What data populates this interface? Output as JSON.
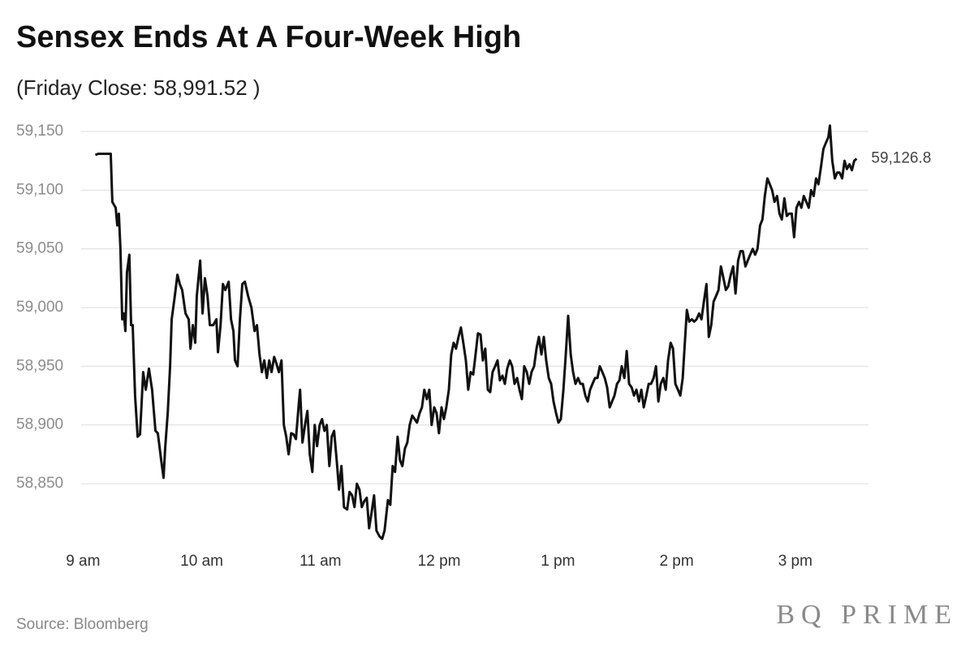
{
  "chart_data": {
    "type": "line",
    "title": "Sensex Ends At A Four-Week High",
    "subtitle": "(Friday Close: 58,991.52 )",
    "source": "Source: Bloomberg",
    "logo": "BQ PRIME",
    "end_label": "59,126.8",
    "xlim": [
      537,
      937
    ],
    "xticks": [
      {
        "value": 540,
        "label": "9 am"
      },
      {
        "value": 600,
        "label": "10 am"
      },
      {
        "value": 660,
        "label": "11 am"
      },
      {
        "value": 720,
        "label": "12 pm"
      },
      {
        "value": 780,
        "label": "1 pm"
      },
      {
        "value": 840,
        "label": "2 pm"
      },
      {
        "value": 900,
        "label": "3 pm"
      }
    ],
    "ylim": [
      58800,
      59160
    ],
    "yticks": [
      {
        "value": 58850,
        "label": "58,850"
      },
      {
        "value": 58900,
        "label": "58,900"
      },
      {
        "value": 58950,
        "label": "58,950"
      },
      {
        "value": 59000,
        "label": "59,000"
      },
      {
        "value": 59050,
        "label": "59,050"
      },
      {
        "value": 59100,
        "label": "59,100"
      },
      {
        "value": 59150,
        "label": "59,150"
      }
    ],
    "grid": true,
    "x": [
      546.2,
      547.8,
      554.0,
      554.8,
      556.5,
      557.3,
      558.1,
      558.9,
      559.8,
      560.6,
      561.4,
      562.2,
      563.4,
      564.3,
      565.1,
      566.3,
      567.6,
      568.8,
      570.4,
      571.7,
      573.3,
      574.9,
      576.6,
      577.8,
      579.5,
      580.7,
      581.5,
      582.8,
      584.0,
      584.8,
      586.4,
      587.7,
      588.9,
      590.1,
      591.8,
      593.4,
      594.3,
      595.5,
      596.7,
      597.5,
      599.2,
      600.4,
      601.6,
      602.9,
      604.1,
      605.8,
      607.4,
      608.2,
      609.5,
      610.7,
      611.9,
      613.6,
      614.8,
      616.0,
      616.8,
      618.1,
      619.3,
      620.5,
      621.8,
      623.4,
      625.1,
      626.7,
      627.9,
      629.2,
      630.4,
      631.6,
      632.9,
      634.1,
      635.3,
      636.6,
      637.8,
      639.0,
      640.3,
      641.5,
      642.7,
      643.9,
      645.2,
      646.4,
      647.6,
      648.9,
      649.7,
      650.9,
      652.2,
      653.4,
      654.6,
      655.9,
      657.1,
      658.3,
      659.6,
      660.8,
      662.0,
      663.2,
      664.5,
      665.7,
      666.9,
      668.2,
      669.4,
      670.6,
      671.9,
      673.5,
      674.7,
      676.0,
      677.2,
      678.4,
      679.7,
      680.9,
      682.1,
      683.4,
      684.6,
      685.8,
      687.1,
      688.3,
      689.9,
      691.2,
      692.4,
      694.1,
      695.3,
      696.5,
      697.7,
      699.0,
      700.2,
      701.4,
      702.7,
      703.9,
      705.1,
      706.4,
      707.6,
      708.8,
      710.1,
      711.3,
      712.5,
      713.8,
      715.0,
      716.2,
      717.5,
      718.7,
      719.9,
      721.2,
      722.4,
      723.6,
      724.9,
      726.1,
      727.3,
      728.5,
      729.8,
      731.0,
      732.2,
      733.5,
      734.7,
      735.9,
      737.2,
      738.4,
      739.6,
      740.9,
      742.1,
      743.3,
      744.6,
      745.8,
      747.0,
      748.3,
      749.5,
      750.7,
      752.0,
      753.2,
      754.4,
      755.7,
      756.9,
      758.1,
      759.4,
      760.6,
      761.8,
      763.0,
      764.3,
      765.5,
      766.7,
      768.0,
      769.2,
      770.4,
      771.7,
      772.9,
      774.1,
      775.4,
      776.6,
      777.8,
      779.1,
      780.3,
      781.5,
      782.8,
      784.0,
      785.2,
      786.5,
      787.7,
      788.9,
      790.2,
      791.4,
      792.6,
      793.9,
      795.1,
      796.3,
      797.5,
      798.8,
      800.0,
      801.2,
      802.5,
      803.7,
      804.9,
      806.2,
      807.4,
      808.6,
      809.9,
      811.1,
      812.3,
      813.6,
      814.8,
      816.0,
      817.3,
      818.5,
      819.7,
      821.0,
      822.2,
      823.4,
      824.7,
      825.9,
      827.1,
      828.4,
      829.6,
      830.8,
      832.0,
      833.3,
      834.5,
      835.7,
      837.0,
      838.2,
      839.4,
      840.7,
      841.9,
      843.1,
      844.0,
      845.2,
      846.4,
      847.7,
      848.9,
      850.1,
      851.4,
      852.6,
      853.8,
      855.1,
      856.3,
      857.5,
      858.7,
      860.0,
      861.2,
      862.4,
      863.7,
      864.9,
      866.1,
      867.4,
      868.6,
      869.8,
      871.1,
      872.3,
      873.5,
      874.8,
      876.0,
      877.2,
      878.5,
      879.7,
      880.9,
      882.2,
      883.4,
      884.6,
      885.9,
      887.1,
      888.3,
      889.5,
      890.8,
      892.0,
      893.2,
      894.5,
      895.7,
      896.9,
      898.2,
      899.4,
      900.6,
      901.9,
      903.1,
      904.3,
      905.6,
      906.8,
      908.0,
      909.3,
      910.5,
      911.7,
      913.0,
      914.2,
      915.4,
      916.7,
      917.5,
      918.7,
      920.0,
      921.2,
      922.4,
      923.7,
      924.9,
      926.1,
      927.4,
      928.6,
      929.8,
      931.0
    ],
    "series": [
      {
        "name": "Sensex",
        "color": "#111111",
        "values": [
          59130,
          59131,
          59131,
          59090,
          59085,
          59070,
          59080,
          59050,
          58990,
          58995,
          58980,
          59030,
          59045,
          58985,
          58985,
          58925,
          58890,
          58892,
          58945,
          58930,
          58948,
          58930,
          58895,
          58893,
          58870,
          58855,
          58880,
          58910,
          58950,
          58990,
          59010,
          59028,
          59020,
          59015,
          58995,
          58990,
          58965,
          58985,
          58970,
          59010,
          59040,
          58995,
          59025,
          59010,
          58985,
          58985,
          58990,
          58962,
          58985,
          59020,
          59015,
          59022,
          58990,
          58980,
          58955,
          58950,
          58990,
          59020,
          59022,
          59010,
          59000,
          58980,
          58985,
          58960,
          58945,
          58955,
          58940,
          58955,
          58945,
          58958,
          58952,
          58945,
          58955,
          58900,
          58890,
          58875,
          58893,
          58892,
          58888,
          58915,
          58930,
          58885,
          58900,
          58912,
          58875,
          58860,
          58900,
          58882,
          58900,
          58905,
          58895,
          58900,
          58865,
          58890,
          58895,
          58870,
          58845,
          58865,
          58830,
          58828,
          58843,
          58840,
          58830,
          58850,
          58845,
          58830,
          58835,
          58838,
          58812,
          58825,
          58840,
          58810,
          58805,
          58803,
          58810,
          58836,
          58832,
          58865,
          58860,
          58890,
          58870,
          58865,
          58880,
          58885,
          58900,
          58908,
          58905,
          58902,
          58910,
          58915,
          58930,
          58922,
          58930,
          58900,
          58915,
          58910,
          58893,
          58915,
          58905,
          58915,
          58930,
          58960,
          58970,
          58965,
          58975,
          58983,
          58970,
          58955,
          58930,
          58945,
          58943,
          58960,
          58978,
          58977,
          58955,
          58965,
          58930,
          58928,
          58945,
          58950,
          58955,
          58938,
          58942,
          58935,
          58948,
          58955,
          58950,
          58935,
          58940,
          58930,
          58922,
          58950,
          58945,
          58935,
          58945,
          58950,
          58965,
          58975,
          58960,
          58975,
          58955,
          58940,
          58935,
          58920,
          58910,
          58902,
          58905,
          58930,
          58960,
          58993,
          58960,
          58945,
          58935,
          58940,
          58935,
          58935,
          58925,
          58920,
          58930,
          58935,
          58940,
          58940,
          58950,
          58945,
          58940,
          58932,
          58915,
          58920,
          58925,
          58935,
          58938,
          58950,
          58940,
          58963,
          58935,
          58932,
          58925,
          58930,
          58920,
          58930,
          58915,
          58925,
          58935,
          58935,
          58940,
          58950,
          58920,
          58935,
          58940,
          58930,
          58955,
          58970,
          58965,
          58935,
          58930,
          58925,
          58940,
          58965,
          58998,
          58988,
          58990,
          58988,
          58990,
          58995,
          58990,
          59005,
          59020,
          58975,
          58985,
          59005,
          59010,
          59015,
          59035,
          59025,
          59015,
          59018,
          59028,
          59035,
          59012,
          59040,
          59048,
          59048,
          59035,
          59040,
          59045,
          59050,
          59045,
          59050,
          59070,
          59075,
          59095,
          59110,
          59105,
          59100,
          59090,
          59095,
          59080,
          59075,
          59093,
          59078,
          59080,
          59080,
          59060,
          59085,
          59090,
          59085,
          59095,
          59090,
          59085,
          59100,
          59095,
          59110,
          59105,
          59120,
          59135,
          59140,
          59145,
          59155,
          59125,
          59110,
          59115,
          59115,
          59110,
          59125,
          59118,
          59122,
          59117,
          59125,
          59126.8
        ]
      }
    ]
  }
}
